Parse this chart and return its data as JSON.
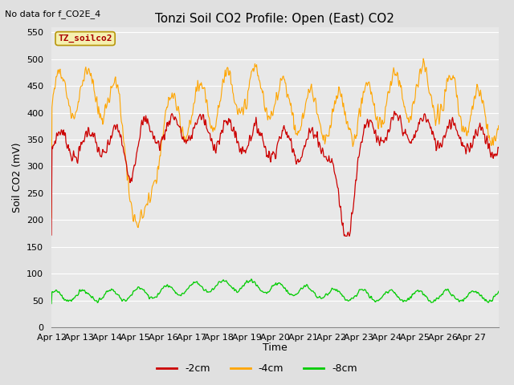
{
  "title": "Tonzi Soil CO2 Profile: Open (East) CO2",
  "no_data_label": "No data for f_CO2E_4",
  "group_label": "TZ_soilco2",
  "ylabel": "Soil CO2 (mV)",
  "xlabel": "Time",
  "ylim": [
    0,
    560
  ],
  "yticks": [
    0,
    50,
    100,
    150,
    200,
    250,
    300,
    350,
    400,
    450,
    500,
    550
  ],
  "xtick_labels": [
    "Apr 12",
    "Apr 13",
    "Apr 14",
    "Apr 15",
    "Apr 16",
    "Apr 17",
    "Apr 18",
    "Apr 19",
    "Apr 20",
    "Apr 21",
    "Apr 22",
    "Apr 23",
    "Apr 24",
    "Apr 25",
    "Apr 26",
    "Apr 27"
  ],
  "legend_labels": [
    "-2cm",
    "-4cm",
    "-8cm"
  ],
  "legend_colors": [
    "#cc0000",
    "#ffa500",
    "#00cc00"
  ],
  "line_colors": [
    "#cc0000",
    "#ffa500",
    "#00cc00"
  ],
  "plot_bg_color": "#e8e8e8",
  "fig_bg_color": "#e0e0e0",
  "grid_color": "#ffffff",
  "title_fontsize": 11,
  "label_fontsize": 9,
  "tick_fontsize": 8
}
